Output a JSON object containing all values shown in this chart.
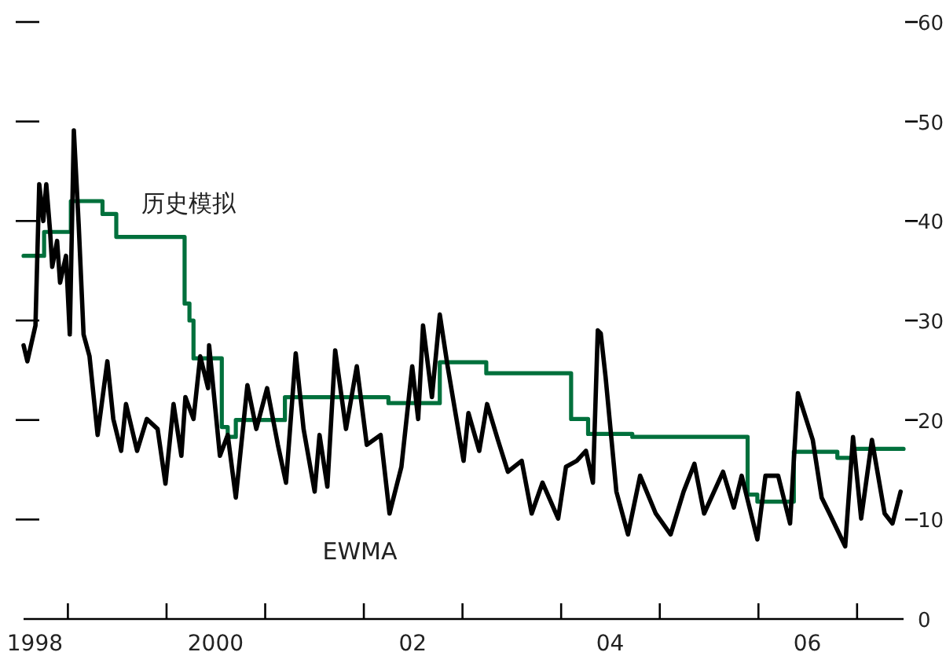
{
  "chart_data": {
    "type": "line",
    "xlim": [
      "1998-07-21",
      "2007-06-22"
    ],
    "ylim": [
      0,
      60
    ],
    "xticks": [
      {
        "value": "1998-09-01",
        "label": "1998"
      },
      {
        "value": "2000-07-01",
        "label": "2000"
      },
      {
        "value": "2002-07-01",
        "label": "02"
      },
      {
        "value": "2004-07-01",
        "label": "04"
      },
      {
        "value": "2006-07-01",
        "label": "06"
      },
      {
        "value": "1999-01-01",
        "label": null
      },
      {
        "value": "2000-01-01",
        "label": null
      },
      {
        "value": "2001-01-01",
        "label": null
      },
      {
        "value": "2002-01-01",
        "label": null
      },
      {
        "value": "2003-01-01",
        "label": null
      },
      {
        "value": "2004-01-01",
        "label": null
      },
      {
        "value": "2005-01-01",
        "label": null
      },
      {
        "value": "2006-01-01",
        "label": null
      },
      {
        "value": "2007-01-01",
        "label": null
      }
    ],
    "yticks": [
      0,
      10,
      20,
      30,
      40,
      50,
      60
    ],
    "grid": false,
    "legend": false,
    "marker": "none",
    "line_style": "solid",
    "series": [
      {
        "name": "历史模拟",
        "type": "step",
        "color": "#00703c",
        "x": [
          "1998-07-21",
          "1998-10-05",
          "1999-01-12",
          "1999-05-09",
          "1999-06-29",
          "2000-03-08",
          "2000-03-26",
          "2000-04-10",
          "2000-07-24",
          "2000-08-15",
          "2000-09-14",
          "2001-03-15",
          "2002-04-02",
          "2002-10-09",
          "2003-03-30",
          "2004-02-07",
          "2004-04-10",
          "2004-09-21",
          "2005-11-22",
          "2005-12-28",
          "2006-05-12",
          "2006-10-20",
          "2006-12-14",
          "2007-06-22"
        ],
        "values": [
          36.5,
          38.9,
          42.0,
          40.7,
          38.4,
          31.7,
          30.0,
          26.2,
          19.3,
          18.3,
          20.0,
          22.3,
          21.7,
          25.8,
          24.7,
          20.1,
          18.6,
          18.3,
          12.5,
          11.8,
          16.8,
          16.2,
          17.1,
          17.1
        ]
      },
      {
        "name": "EWMA",
        "type": "line",
        "color": "#000000",
        "x": [
          "1998-07-21",
          "1998-08-04",
          "1998-09-03",
          "1998-09-17",
          "1998-10-02",
          "1998-10-13",
          "1998-10-27",
          "1998-11-04",
          "1998-11-22",
          "1998-12-03",
          "1998-12-25",
          "1999-01-08",
          "1999-01-23",
          "1999-02-10",
          "1999-02-28",
          "1999-03-22",
          "1999-04-21",
          "1999-05-27",
          "1999-06-18",
          "1999-07-17",
          "1999-08-04",
          "1999-09-14",
          "1999-10-20",
          "1999-11-29",
          "1999-12-28",
          "2000-01-27",
          "2000-02-25",
          "2000-03-11",
          "2000-04-10",
          "2000-05-05",
          "2000-06-03",
          "2000-06-07",
          "2000-07-17",
          "2000-08-15",
          "2000-09-14",
          "2000-10-27",
          "2000-11-29",
          "2001-01-08",
          "2001-02-17",
          "2001-03-19",
          "2001-04-24",
          "2001-05-23",
          "2001-07-03",
          "2001-07-21",
          "2001-08-19",
          "2001-09-17",
          "2001-10-27",
          "2001-12-06",
          "2002-01-12",
          "2002-03-04",
          "2002-04-06",
          "2002-05-20",
          "2002-06-29",
          "2002-07-21",
          "2002-08-08",
          "2002-09-10",
          "2002-10-09",
          "2002-11-07",
          "2002-12-06",
          "2003-01-05",
          "2003-01-23",
          "2003-03-04",
          "2003-04-02",
          "2003-05-12",
          "2003-06-18",
          "2003-08-08",
          "2003-09-14",
          "2003-10-24",
          "2003-12-21",
          "2004-01-19",
          "2004-02-28",
          "2004-04-02",
          "2004-04-28",
          "2004-05-16",
          "2004-05-27",
          "2004-06-14",
          "2004-07-24",
          "2004-09-05",
          "2004-10-20",
          "2004-12-17",
          "2005-02-10",
          "2005-03-30",
          "2005-05-09",
          "2005-06-14",
          "2005-08-23",
          "2005-10-02",
          "2005-10-31",
          "2005-12-28",
          "2006-01-27",
          "2006-03-15",
          "2006-04-28",
          "2006-05-27",
          "2006-07-21",
          "2006-08-23",
          "2006-09-21",
          "2006-11-18",
          "2006-12-17",
          "2007-01-16",
          "2007-02-25",
          "2007-04-13",
          "2007-05-12",
          "2007-06-11"
        ],
        "values": [
          27.5,
          25.9,
          29.5,
          43.7,
          40,
          43.7,
          39,
          35.4,
          38,
          33.8,
          36.5,
          28.6,
          49.1,
          39.6,
          28.6,
          26.4,
          18.5,
          25.9,
          20.1,
          16.9,
          21.6,
          16.9,
          20.1,
          19.1,
          13.6,
          21.6,
          16.4,
          22.3,
          20.1,
          26.4,
          23.2,
          27.5,
          16.4,
          18.5,
          12.2,
          23.5,
          19.1,
          23.2,
          17.5,
          13.7,
          26.7,
          19.1,
          12.8,
          18.5,
          13.3,
          27,
          19.1,
          25.4,
          17.5,
          18.5,
          10.6,
          15.3,
          25.4,
          20.1,
          29.5,
          22.3,
          30.6,
          25.4,
          20.7,
          15.9,
          20.7,
          16.9,
          21.6,
          18,
          14.8,
          15.9,
          10.6,
          13.7,
          10.1,
          15.3,
          15.9,
          16.9,
          13.7,
          29,
          28.7,
          24.3,
          12.8,
          8.5,
          14.4,
          10.6,
          8.5,
          12.8,
          15.6,
          10.6,
          14.8,
          11.2,
          14.4,
          8,
          14.4,
          14.4,
          9.6,
          22.7,
          18,
          12.2,
          10.6,
          7.3,
          18.3,
          10.1,
          18,
          10.6,
          9.6,
          12.8
        ]
      }
    ]
  }
}
